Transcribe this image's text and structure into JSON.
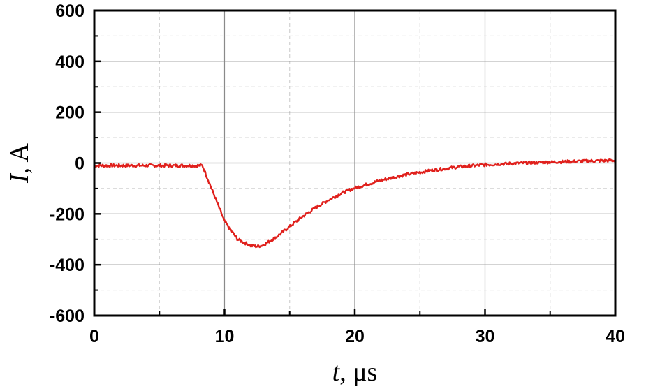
{
  "chart_data": {
    "type": "line",
    "xlabel": {
      "symbol": "t",
      "unit": "μs"
    },
    "ylabel": {
      "symbol": "I",
      "unit": "A"
    },
    "xlim": [
      0,
      40
    ],
    "ylim": [
      -600,
      600
    ],
    "x_ticks": [
      "0",
      "10",
      "20",
      "30",
      "40"
    ],
    "y_ticks": [
      "600",
      "400",
      "200",
      "0",
      "-200",
      "-400",
      "-600"
    ],
    "grid": true,
    "legend": "none",
    "series": [
      {
        "color": "#e0201c",
        "x": [
          0,
          2,
          4,
          6,
          8,
          8.3,
          9,
          10,
          11,
          12,
          12.5,
          13,
          14,
          15,
          16,
          17,
          18,
          19,
          20,
          22,
          24,
          26,
          28,
          30,
          32,
          34,
          36,
          38,
          40
        ],
        "y": [
          -10,
          -10,
          -10,
          -10,
          -10,
          -10,
          -100,
          -230,
          -300,
          -325,
          -328,
          -322,
          -290,
          -250,
          -210,
          -175,
          -145,
          -118,
          -98,
          -68,
          -45,
          -28,
          -15,
          -7,
          -2,
          2,
          5,
          8,
          10
        ]
      }
    ]
  }
}
